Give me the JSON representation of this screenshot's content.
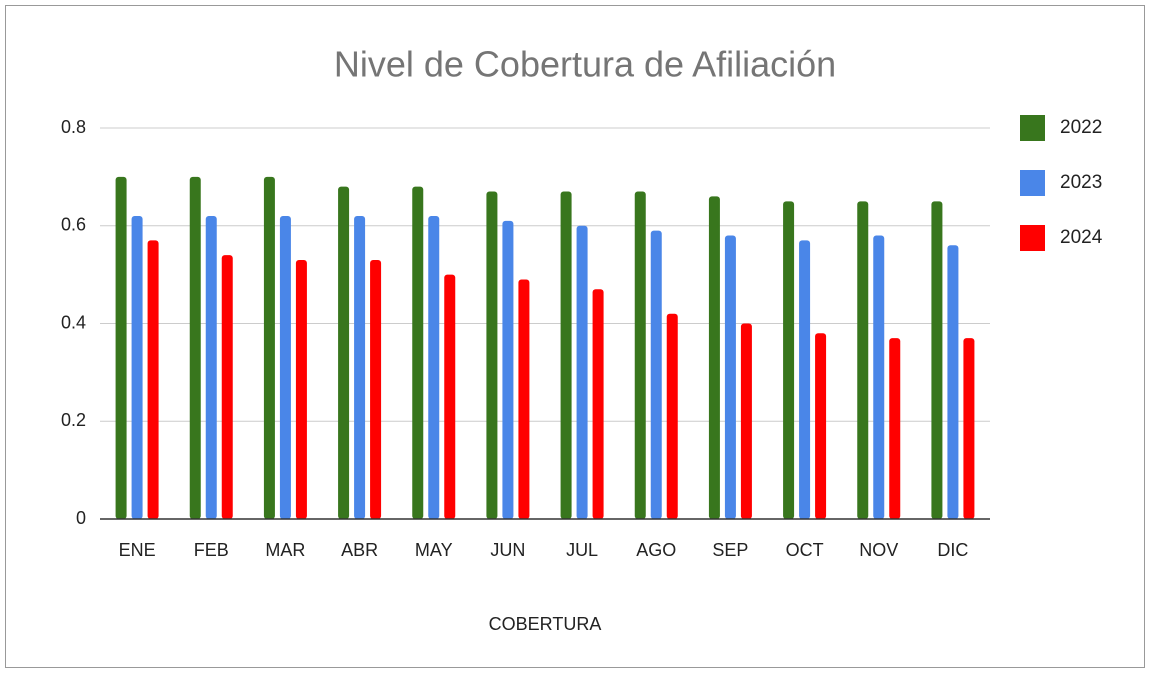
{
  "chart_data": {
    "type": "bar",
    "title": "Nivel de Cobertura de Afiliación",
    "x_label": "COBERTURA",
    "categories": [
      "ENE",
      "FEB",
      "MAR",
      "ABR",
      "MAY",
      "JUN",
      "JUL",
      "AGO",
      "SEP",
      "OCT",
      "NOV",
      "DIC"
    ],
    "series": [
      {
        "name": "2022",
        "color": "#38761d",
        "values": [
          0.7,
          0.7,
          0.7,
          0.68,
          0.68,
          0.67,
          0.67,
          0.67,
          0.66,
          0.65,
          0.65,
          0.65
        ]
      },
      {
        "name": "2023",
        "color": "#4a86e8",
        "values": [
          0.62,
          0.62,
          0.62,
          0.62,
          0.62,
          0.61,
          0.6,
          0.59,
          0.58,
          0.57,
          0.58,
          0.56
        ]
      },
      {
        "name": "2024",
        "color": "#ff0000",
        "values": [
          0.57,
          0.54,
          0.53,
          0.53,
          0.5,
          0.49,
          0.47,
          0.42,
          0.4,
          0.38,
          0.37,
          0.37
        ]
      }
    ],
    "ylim": [
      0,
      0.8
    ],
    "yticks": [
      0,
      0.2,
      0.4,
      0.6,
      0.8
    ],
    "grid": true,
    "legend": "right"
  }
}
